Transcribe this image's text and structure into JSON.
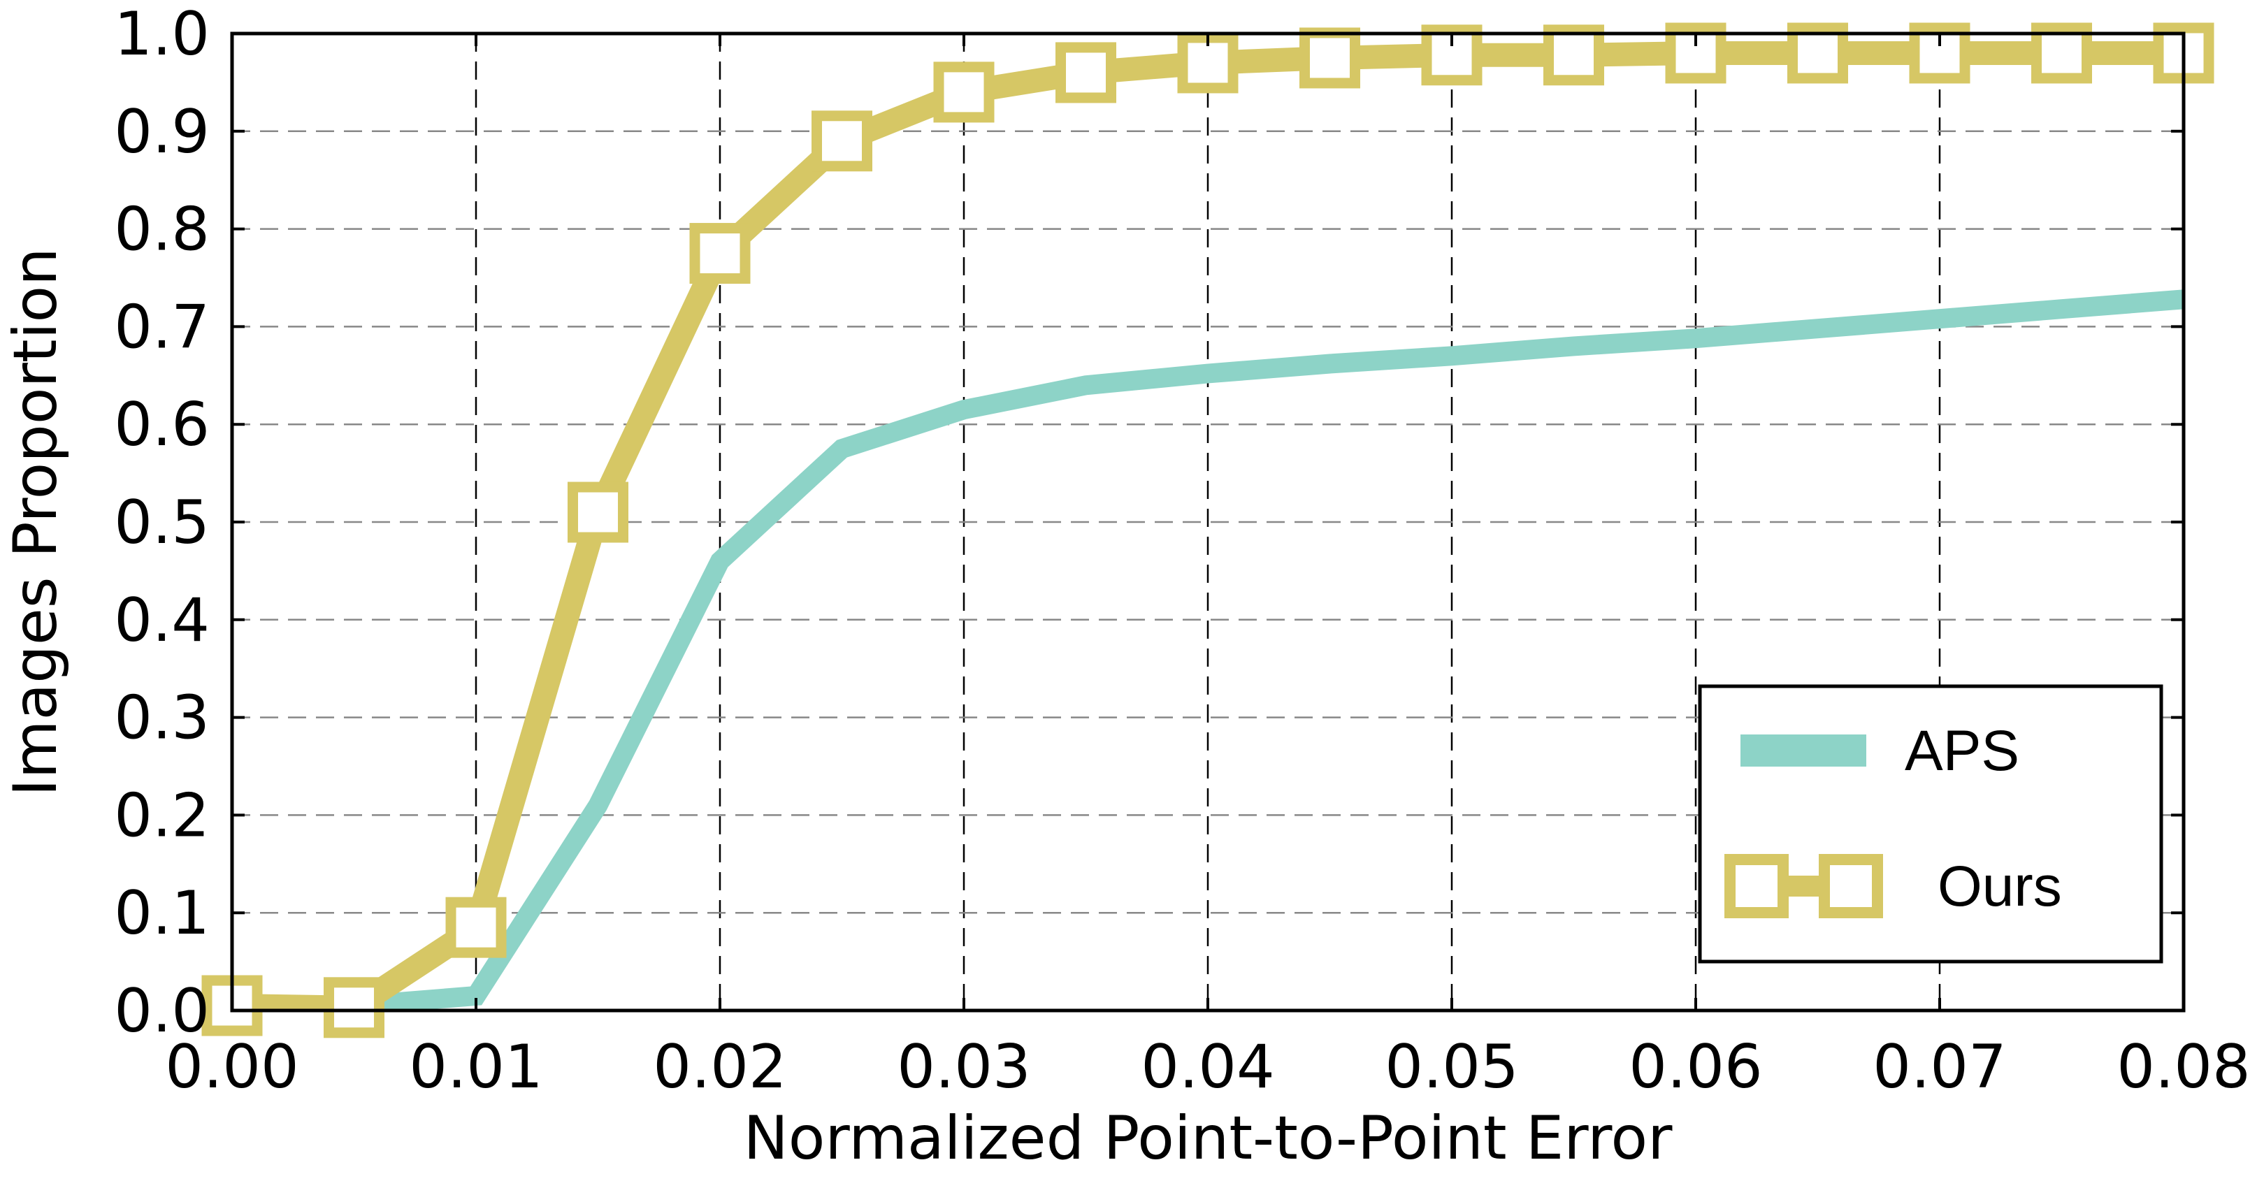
{
  "chart_data": {
    "type": "line",
    "xlabel": "Normalized Point-to-Point Error",
    "ylabel": "Images Proportion",
    "xlim": [
      0.0,
      0.08
    ],
    "ylim": [
      0.0,
      1.0
    ],
    "xticks": [
      "0.00",
      "0.01",
      "0.02",
      "0.03",
      "0.04",
      "0.05",
      "0.06",
      "0.07",
      "0.08"
    ],
    "yticks": [
      "0.0",
      "0.1",
      "0.2",
      "0.3",
      "0.4",
      "0.5",
      "0.6",
      "0.7",
      "0.8",
      "0.9",
      "1.0"
    ],
    "grid": true,
    "legend_position": "bottom-right",
    "series": [
      {
        "name": "APS",
        "color": "#8DD3C7",
        "marker": "none",
        "x": [
          0.0,
          0.005,
          0.01,
          0.015,
          0.02,
          0.025,
          0.03,
          0.035,
          0.04,
          0.045,
          0.05,
          0.055,
          0.06,
          0.065,
          0.07,
          0.075,
          0.08
        ],
        "y": [
          0.0,
          0.005,
          0.015,
          0.21,
          0.46,
          0.575,
          0.615,
          0.64,
          0.652,
          0.662,
          0.67,
          0.68,
          0.688,
          0.698,
          0.708,
          0.718,
          0.728
        ]
      },
      {
        "name": "Ours",
        "color": "#D6C765",
        "marker": "square",
        "x": [
          0.0,
          0.005,
          0.01,
          0.015,
          0.02,
          0.025,
          0.03,
          0.035,
          0.04,
          0.045,
          0.05,
          0.055,
          0.06,
          0.065,
          0.07,
          0.075,
          0.08
        ],
        "y": [
          0.005,
          0.003,
          0.085,
          0.51,
          0.775,
          0.89,
          0.94,
          0.96,
          0.97,
          0.975,
          0.978,
          0.978,
          0.98,
          0.98,
          0.98,
          0.98,
          0.98
        ]
      }
    ]
  }
}
